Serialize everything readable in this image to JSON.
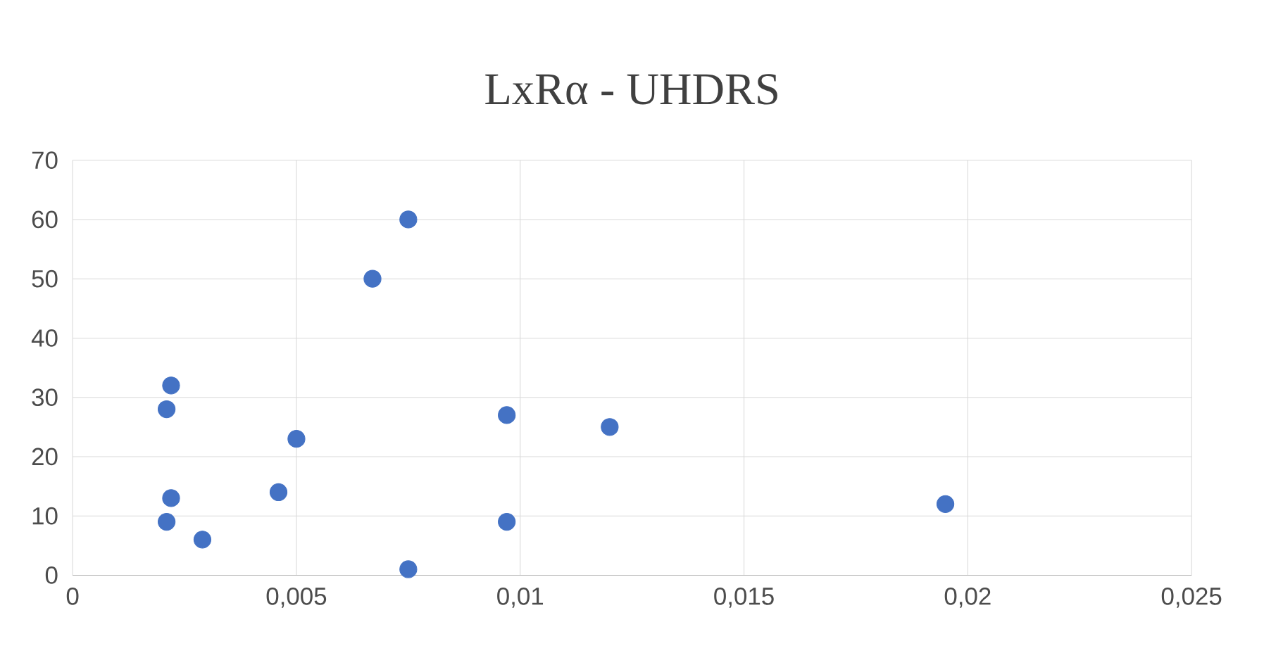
{
  "chart_data": {
    "type": "scatter",
    "title": "LxRα - UHDRS",
    "x": [
      0.0022,
      0.0021,
      0.0022,
      0.0021,
      0.0029,
      0.0046,
      0.005,
      0.0067,
      0.0075,
      0.0075,
      0.0097,
      0.0097,
      0.012,
      0.0195
    ],
    "values": [
      32,
      28,
      13,
      9,
      6,
      14,
      23,
      50,
      60,
      1,
      27,
      9,
      25,
      12
    ],
    "color": "#4472c4",
    "marker": "circle",
    "xlim": [
      0,
      0.025
    ],
    "xticks": [
      0,
      {
        "value": 0.005,
        "label": "0,005"
      },
      {
        "value": 0.01,
        "label": "0,01"
      },
      {
        "value": 0.015,
        "label": "0,015"
      },
      {
        "value": 0.02,
        "label": "0,02"
      },
      {
        "value": 0.025,
        "label": "0,025"
      }
    ],
    "ylim": [
      0,
      70
    ],
    "yticks": [
      0,
      10,
      20,
      30,
      40,
      50,
      60,
      70
    ],
    "grid": true
  }
}
